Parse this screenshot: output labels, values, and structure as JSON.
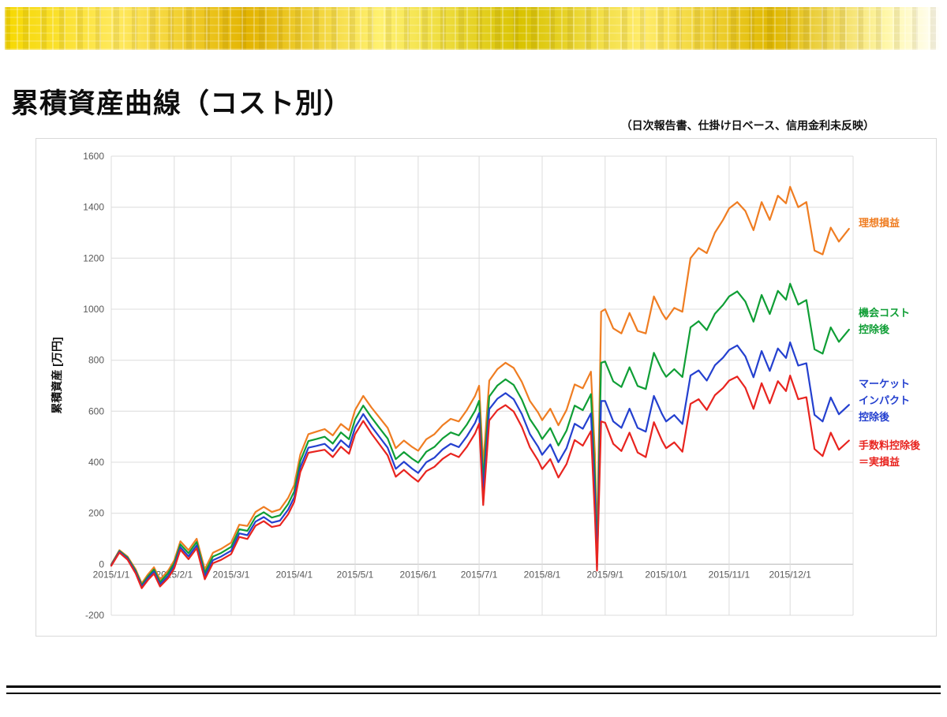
{
  "slide": {
    "title": "累積資産曲線（コスト別）",
    "subtitle": "（日次報告書、仕掛け日ベース、信用金利未反映）"
  },
  "chart_data": {
    "type": "line",
    "title": "",
    "xlabel": "",
    "ylabel": "累積資産 [万円]",
    "ylim": [
      -200,
      1600
    ],
    "ytick_step": 200,
    "xlim": [
      0,
      365
    ],
    "grid": true,
    "legend_position": "direct-labels-right",
    "x_unit": "day of 2015",
    "month_tick_days": [
      0,
      31,
      59,
      90,
      120,
      151,
      181,
      212,
      243,
      273,
      304,
      334
    ],
    "x_tick_labels": [
      "2015/1/1",
      "2015/2/1",
      "2015/3/1",
      "2015/4/1",
      "2015/5/1",
      "2015/6/1",
      "2015/7/1",
      "2015/8/1",
      "2015/9/1",
      "2015/10/1",
      "2015/11/1",
      "2015/12/1"
    ],
    "x": [
      0,
      4,
      8,
      12,
      15,
      18,
      21,
      24,
      28,
      31,
      34,
      38,
      42,
      46,
      50,
      54,
      59,
      63,
      67,
      71,
      75,
      79,
      83,
      87,
      90,
      93,
      97,
      101,
      105,
      109,
      113,
      117,
      120,
      124,
      128,
      132,
      136,
      140,
      144,
      148,
      151,
      155,
      159,
      163,
      167,
      171,
      175,
      179,
      181,
      183,
      186,
      190,
      194,
      198,
      202,
      206,
      210,
      212,
      216,
      220,
      224,
      228,
      232,
      236,
      238,
      239,
      241,
      243,
      247,
      251,
      255,
      259,
      263,
      267,
      271,
      273,
      277,
      281,
      285,
      289,
      293,
      297,
      301,
      304,
      308,
      312,
      316,
      320,
      324,
      328,
      332,
      334,
      338,
      342,
      346,
      350,
      354,
      358,
      363
    ],
    "series": [
      {
        "name": "理想損益",
        "label_lines": [
          "理想損益"
        ],
        "color": "#ef7d22",
        "values": [
          0,
          55,
          30,
          -20,
          -75,
          -40,
          -12,
          -60,
          -25,
          15,
          90,
          55,
          100,
          -20,
          45,
          60,
          85,
          155,
          150,
          205,
          225,
          205,
          215,
          260,
          310,
          430,
          510,
          520,
          530,
          505,
          550,
          525,
          605,
          660,
          615,
          575,
          535,
          455,
          485,
          460,
          445,
          490,
          510,
          545,
          570,
          560,
          605,
          660,
          700,
          390,
          720,
          765,
          790,
          770,
          715,
          640,
          595,
          565,
          610,
          545,
          605,
          705,
          690,
          755,
          430,
          60,
          990,
          1000,
          925,
          905,
          985,
          915,
          905,
          1050,
          985,
          960,
          1005,
          990,
          1200,
          1240,
          1220,
          1300,
          1350,
          1395,
          1420,
          1385,
          1310,
          1420,
          1350,
          1445,
          1415,
          1480,
          1400,
          1420,
          1230,
          1215,
          1320,
          1265,
          1315
        ]
      },
      {
        "name": "機会コスト控除後",
        "label_lines": [
          "機会コスト",
          "控除後"
        ],
        "color": "#0f9e35",
        "values": [
          -2,
          52,
          26,
          -26,
          -82,
          -48,
          -21,
          -70,
          -35,
          4,
          78,
          43,
          87,
          -34,
          30,
          44,
          68,
          137,
          131,
          185,
          204,
          183,
          192,
          236,
          285,
          404,
          483,
          491,
          500,
          473,
          517,
          490,
          568,
          622,
          576,
          534,
          493,
          412,
          440,
          414,
          398,
          441,
          460,
          493,
          517,
          505,
          548,
          602,
          641,
          330,
          658,
          701,
          725,
          703,
          646,
          569,
          522,
          491,
          534,
          466,
          524,
          622,
          604,
          667,
          340,
          20,
          790,
          795,
          717,
          695,
          772,
          699,
          687,
          829,
          761,
          735,
          765,
          734,
          929,
          953,
          918,
          982,
          1017,
          1050,
          1070,
          1030,
          951,
          1056,
          981,
          1072,
          1037,
          1100,
          1018,
          1036,
          843,
          826,
          929,
          872,
          920
        ]
      },
      {
        "name": "マーケットインパクト控除後",
        "label_lines": [
          "マーケット",
          "インパクト",
          "控除後"
        ],
        "color": "#2440cf",
        "values": [
          -4,
          49,
          22,
          -31,
          -88,
          -55,
          -29,
          -79,
          -46,
          -7,
          67,
          31,
          74,
          -47,
          16,
          30,
          53,
          121,
          114,
          167,
          185,
          163,
          171,
          214,
          262,
          380,
          457,
          464,
          472,
          444,
          486,
          458,
          536,
          589,
          541,
          499,
          457,
          374,
          402,
          375,
          358,
          400,
          418,
          450,
          472,
          459,
          502,
          554,
          593,
          280,
          608,
          649,
          671,
          647,
          589,
          510,
          461,
          429,
          470,
          400,
          455,
          551,
          531,
          591,
          261,
          -10,
          640,
          640,
          560,
          535,
          610,
          535,
          520,
          660,
          589,
          560,
          585,
          550,
          740,
          760,
          720,
          780,
          810,
          840,
          858,
          815,
          733,
          836,
          758,
          846,
          809,
          870,
          779,
          788,
          586,
          560,
          654,
          588,
          625
        ]
      },
      {
        "name": "手数料控除後＝実損益",
        "label_lines": [
          "手数料控除後",
          "＝実損益"
        ],
        "color": "#e8241f",
        "values": [
          -6,
          46,
          18,
          -36,
          -94,
          -62,
          -37,
          -87,
          -54,
          -16,
          57,
          20,
          63,
          -59,
          4,
          17,
          40,
          107,
          99,
          151,
          169,
          146,
          153,
          196,
          244,
          361,
          437,
          443,
          449,
          420,
          461,
          433,
          510,
          562,
          513,
          470,
          427,
          343,
          370,
          342,
          324,
          365,
          382,
          413,
          434,
          420,
          461,
          513,
          551,
          232,
          564,
          604,
          624,
          599,
          539,
          458,
          407,
          373,
          412,
          340,
          393,
          487,
          465,
          522,
          188,
          -25,
          560,
          555,
          472,
          444,
          516,
          438,
          420,
          557,
          484,
          455,
          478,
          441,
          629,
          647,
          605,
          663,
          691,
          720,
          736,
          692,
          609,
          710,
          631,
          718,
          679,
          740,
          647,
          655,
          452,
          424,
          516,
          449,
          485
        ]
      }
    ]
  }
}
